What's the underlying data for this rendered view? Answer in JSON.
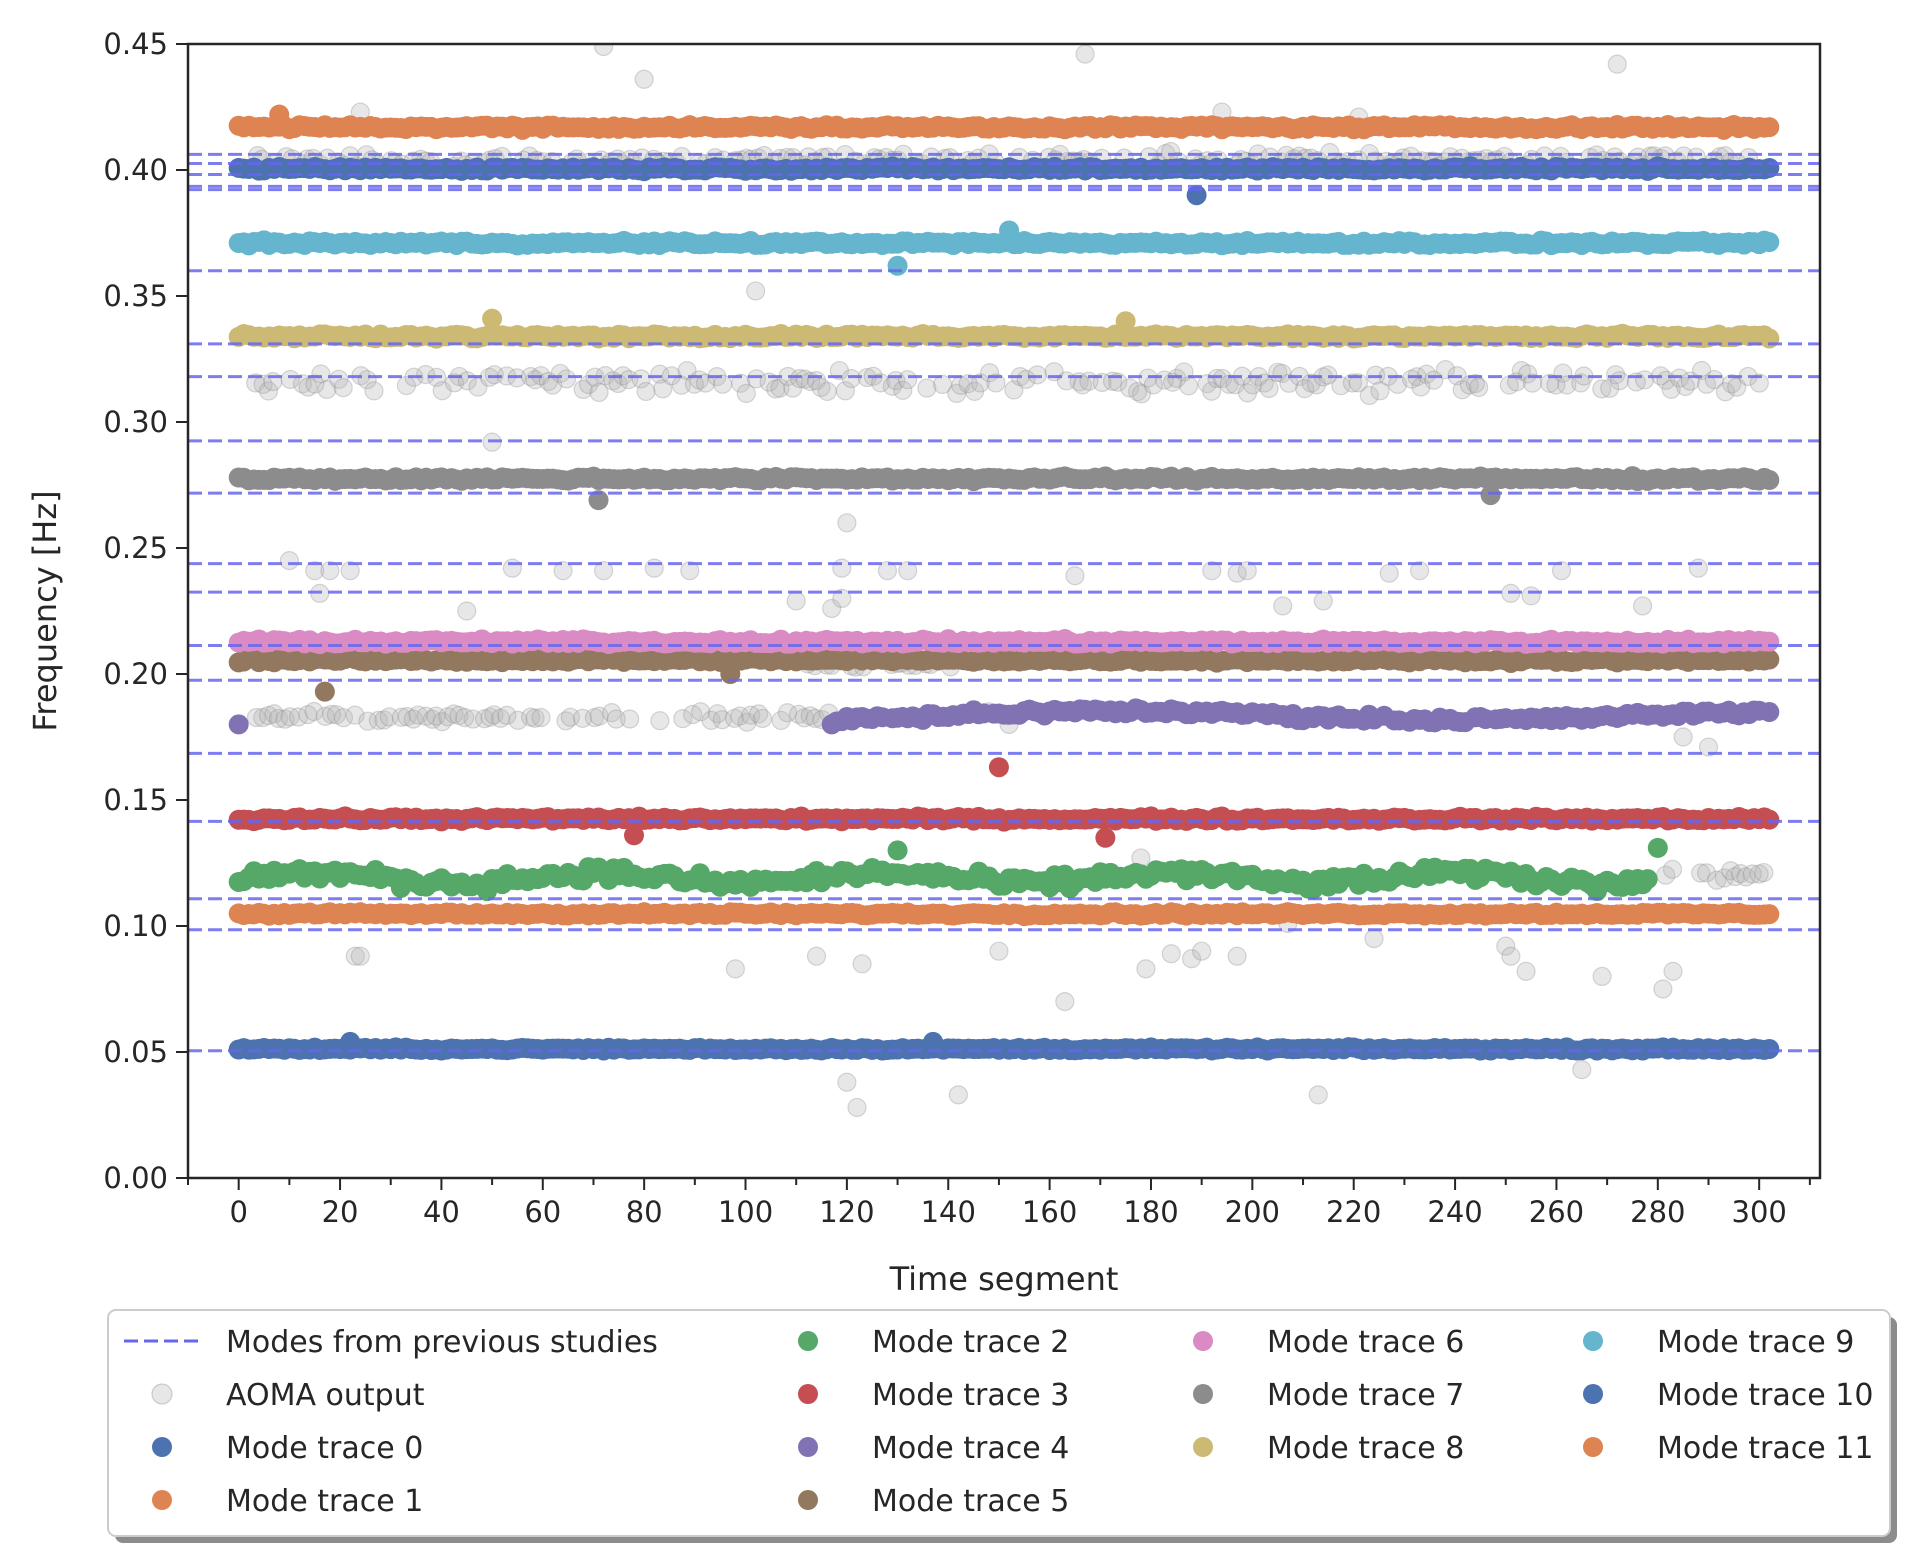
{
  "chart_data": {
    "type": "scatter",
    "title": "",
    "xlabel": "Time segment",
    "ylabel": "Frequency [Hz]",
    "xlim": [
      -10,
      312
    ],
    "ylim": [
      0.0,
      0.45
    ],
    "xticks": [
      "0",
      "20",
      "40",
      "60",
      "80",
      "100",
      "120",
      "140",
      "160",
      "180",
      "200",
      "220",
      "240",
      "260",
      "280",
      "300"
    ],
    "yticks": [
      "0.00",
      "0.05",
      "0.10",
      "0.15",
      "0.20",
      "0.25",
      "0.30",
      "0.35",
      "0.40",
      "0.45"
    ],
    "grid": false,
    "legend_position": "bottom",
    "previous_modes": {
      "name": "Modes from previous studies",
      "color": "#6666ee",
      "values": [
        0.0505,
        0.0985,
        0.1108,
        0.1415,
        0.1685,
        0.1975,
        0.2113,
        0.2325,
        0.2438,
        0.2718,
        0.2925,
        0.318,
        0.331,
        0.36,
        0.3922,
        0.3935,
        0.3982,
        0.4026,
        0.4062
      ]
    },
    "aoma_output": {
      "name": "AOMA output",
      "color": "#b3b3b3",
      "bands": [
        {
          "y": 0.316,
          "spread": 0.0065,
          "x0": 2,
          "x1": 300
        },
        {
          "y": 0.183,
          "spread": 0.0025,
          "x0": 2,
          "x1": 120
        },
        {
          "y": 0.204,
          "spread": 0.0025,
          "x0": 110,
          "x1": 140
        },
        {
          "y": 0.121,
          "spread": 0.004,
          "x0": 280,
          "x1": 302
        },
        {
          "y": 0.404,
          "spread": 0.004,
          "x0": 2,
          "x1": 300
        }
      ],
      "outliers": [
        [
          72,
          0.449
        ],
        [
          80,
          0.436
        ],
        [
          167,
          0.446
        ],
        [
          272,
          0.442
        ],
        [
          24,
          0.423
        ],
        [
          194,
          0.423
        ],
        [
          221,
          0.421
        ],
        [
          102,
          0.352
        ],
        [
          50,
          0.292
        ],
        [
          120,
          0.26
        ],
        [
          10,
          0.245
        ],
        [
          15,
          0.241
        ],
        [
          18,
          0.241
        ],
        [
          22,
          0.241
        ],
        [
          16,
          0.232
        ],
        [
          45,
          0.225
        ],
        [
          54,
          0.242
        ],
        [
          64,
          0.241
        ],
        [
          72,
          0.241
        ],
        [
          82,
          0.242
        ],
        [
          89,
          0.241
        ],
        [
          110,
          0.229
        ],
        [
          119,
          0.242
        ],
        [
          128,
          0.241
        ],
        [
          132,
          0.241
        ],
        [
          117,
          0.226
        ],
        [
          119,
          0.23
        ],
        [
          165,
          0.239
        ],
        [
          192,
          0.241
        ],
        [
          197,
          0.24
        ],
        [
          199,
          0.241
        ],
        [
          206,
          0.227
        ],
        [
          214,
          0.229
        ],
        [
          227,
          0.24
        ],
        [
          233,
          0.241
        ],
        [
          251,
          0.232
        ],
        [
          255,
          0.231
        ],
        [
          261,
          0.241
        ],
        [
          277,
          0.227
        ],
        [
          288,
          0.242
        ],
        [
          290,
          0.171
        ],
        [
          285,
          0.175
        ],
        [
          23,
          0.088
        ],
        [
          24,
          0.088
        ],
        [
          98,
          0.083
        ],
        [
          114,
          0.088
        ],
        [
          123,
          0.085
        ],
        [
          150,
          0.09
        ],
        [
          178,
          0.127
        ],
        [
          179,
          0.083
        ],
        [
          184,
          0.089
        ],
        [
          188,
          0.087
        ],
        [
          190,
          0.09
        ],
        [
          197,
          0.088
        ],
        [
          207,
          0.101
        ],
        [
          224,
          0.095
        ],
        [
          250,
          0.092
        ],
        [
          251,
          0.088
        ],
        [
          254,
          0.082
        ],
        [
          269,
          0.08
        ],
        [
          281,
          0.075
        ],
        [
          283,
          0.082
        ],
        [
          120,
          0.038
        ],
        [
          122,
          0.028
        ],
        [
          142,
          0.033
        ],
        [
          163,
          0.07
        ],
        [
          213,
          0.033
        ],
        [
          265,
          0.043
        ],
        [
          148,
          0.185
        ],
        [
          152,
          0.18
        ]
      ]
    },
    "series": [
      {
        "name": "Mode trace 0",
        "color": "#4c72b0",
        "y": 0.0512,
        "jitter": 0.0008,
        "x0": 0,
        "x1": 302
      },
      {
        "name": "Mode trace 1",
        "color": "#dd8452",
        "y": 0.1048,
        "jitter": 0.001,
        "x0": 0,
        "x1": 302
      },
      {
        "name": "Mode trace 2",
        "color": "#55a868",
        "y": 0.119,
        "jitter": 0.004,
        "x0": 0,
        "x1": 278
      },
      {
        "name": "Mode trace 3",
        "color": "#c44e52",
        "y": 0.1425,
        "jitter": 0.0012,
        "x0": 0,
        "x1": 302
      },
      {
        "name": "Mode trace 4",
        "color": "#8172b3",
        "y": 0.1835,
        "jitter": 0.002,
        "x0": 118,
        "x1": 302
      },
      {
        "name": "Mode trace 5",
        "color": "#937860",
        "y": 0.2055,
        "jitter": 0.0012,
        "x0": 0,
        "x1": 302
      },
      {
        "name": "Mode trace 6",
        "color": "#da8bc3",
        "y": 0.2128,
        "jitter": 0.0012,
        "x0": 0,
        "x1": 302
      },
      {
        "name": "Mode trace 7",
        "color": "#8c8c8c",
        "y": 0.2775,
        "jitter": 0.0012,
        "x0": 0,
        "x1": 302
      },
      {
        "name": "Mode trace 8",
        "color": "#ccb974",
        "y": 0.334,
        "jitter": 0.0012,
        "x0": 0,
        "x1": 302
      },
      {
        "name": "Mode trace 9",
        "color": "#64b5cd",
        "y": 0.371,
        "jitter": 0.0012,
        "x0": 0,
        "x1": 302
      },
      {
        "name": "Mode trace 10",
        "color": "#4c72b0",
        "y": 0.4005,
        "jitter": 0.0012,
        "x0": 0,
        "x1": 302
      },
      {
        "name": "Mode trace 11",
        "color": "#dd8452",
        "y": 0.417,
        "jitter": 0.0012,
        "x0": 0,
        "x1": 302
      }
    ],
    "series_outliers": [
      {
        "series": 0,
        "x": 22,
        "y": 0.054
      },
      {
        "series": 0,
        "x": 137,
        "y": 0.054
      },
      {
        "series": 2,
        "x": 280,
        "y": 0.131
      },
      {
        "series": 2,
        "x": 130,
        "y": 0.13
      },
      {
        "series": 3,
        "x": 150,
        "y": 0.163
      },
      {
        "series": 3,
        "x": 171,
        "y": 0.135
      },
      {
        "series": 3,
        "x": 78,
        "y": 0.136
      },
      {
        "series": 4,
        "x": 0,
        "y": 0.18
      },
      {
        "series": 4,
        "x": 117,
        "y": 0.18
      },
      {
        "series": 5,
        "x": 17,
        "y": 0.193
      },
      {
        "series": 5,
        "x": 97,
        "y": 0.2
      },
      {
        "series": 7,
        "x": 71,
        "y": 0.269
      },
      {
        "series": 7,
        "x": 247,
        "y": 0.271
      },
      {
        "series": 8,
        "x": 50,
        "y": 0.341
      },
      {
        "series": 8,
        "x": 175,
        "y": 0.34
      },
      {
        "series": 9,
        "x": 130,
        "y": 0.362
      },
      {
        "series": 9,
        "x": 152,
        "y": 0.376
      },
      {
        "series": 10,
        "x": 189,
        "y": 0.39
      },
      {
        "series": 11,
        "x": 8,
        "y": 0.422
      }
    ]
  }
}
